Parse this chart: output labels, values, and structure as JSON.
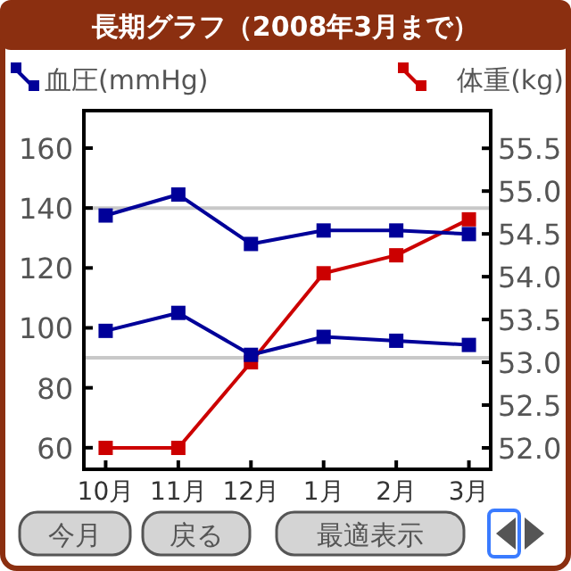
{
  "chart_data": {
    "type": "line",
    "title": "長期グラフ（2008年3月まで）",
    "categories": [
      "10月",
      "11月",
      "12月",
      "1月",
      "2月",
      "3月"
    ],
    "series": [
      {
        "name": "血圧(mmHg)",
        "color": "#000099",
        "values": [
          137.5,
          144.5,
          128,
          132.5,
          132.5,
          131.3
        ]
      },
      {
        "color": "#000099",
        "values": [
          99,
          105,
          91,
          97,
          95.7,
          94.3
        ]
      },
      {
        "name": "体重(kg)",
        "color": "#cc0000",
        "axis": "y2",
        "values": [
          52.0,
          52.0,
          53.0,
          54.04,
          54.25,
          54.67
        ]
      }
    ],
    "ylim": [
      52.8,
      172.5
    ],
    "yticks": [
      60,
      80,
      100,
      120,
      140,
      160
    ],
    "y2lim": [
      51.75,
      55.94
    ],
    "y2ticks": [
      {
        "value": 52,
        "label": "52.0"
      },
      52.5,
      {
        "value": 53,
        "label": "53.0"
      },
      53.5,
      {
        "value": 54,
        "label": "54.0"
      },
      54.5,
      {
        "value": 55,
        "label": "55.0"
      },
      55.5
    ],
    "ref_lines": [
      {
        "axis": "y",
        "value": 140,
        "color": "#c8c8c8"
      },
      {
        "axis": "y",
        "value": 90,
        "color": "#c8c8c8"
      }
    ],
    "marker": "square",
    "line_style": "solid",
    "legend": "top",
    "annotations": [
      "今月",
      "戻る",
      "最適表示"
    ]
  }
}
